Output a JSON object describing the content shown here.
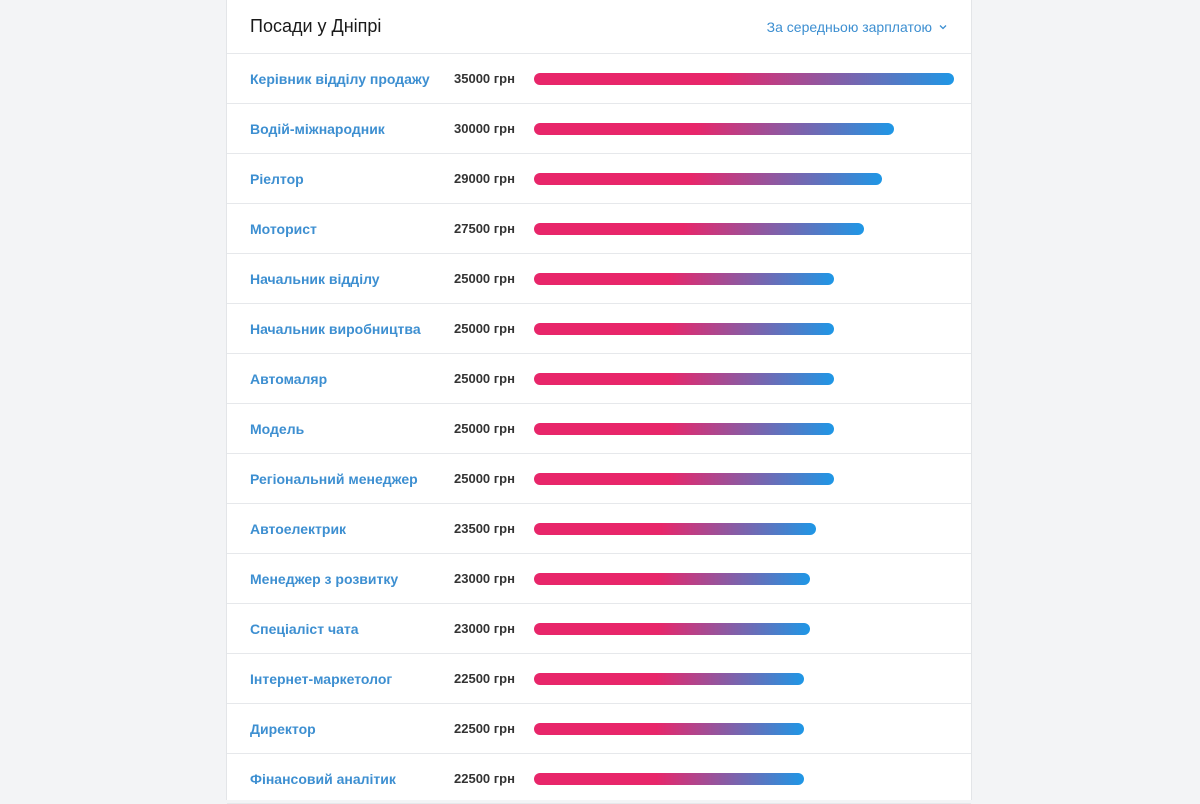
{
  "header": {
    "title": "Посади у Дніпрі",
    "sort_label": "За середньою зарплатою"
  },
  "colors": {
    "bar_start": "#e8266a",
    "bar_end": "#1e97e6",
    "link": "#3d8fd1"
  },
  "currency": "грн",
  "chart_data": {
    "type": "bar",
    "orientation": "horizontal",
    "title": "Посади у Дніпрі",
    "categories": [
      "Керівник відділу продажу",
      "Водій-міжнародник",
      "Ріелтор",
      "Моторист",
      "Начальник відділу",
      "Начальник виробництва",
      "Автомаляр",
      "Модель",
      "Регіональний менеджер",
      "Автоелектрик",
      "Менеджер з розвитку",
      "Спеціаліст чата",
      "Інтернет-маркетолог",
      "Директор",
      "Фінансовий аналітик"
    ],
    "values": [
      35000,
      30000,
      29000,
      27500,
      25000,
      25000,
      25000,
      25000,
      25000,
      23500,
      23000,
      23000,
      22500,
      22500,
      22500
    ],
    "value_labels": [
      "35000 грн",
      "30000 грн",
      "29000 грн",
      "27500 грн",
      "25000 грн",
      "25000 грн",
      "25000 грн",
      "25000 грн",
      "25000 грн",
      "23500 грн",
      "23000 грн",
      "23000 грн",
      "22500 грн",
      "22500 грн",
      "22500 грн"
    ]
  }
}
